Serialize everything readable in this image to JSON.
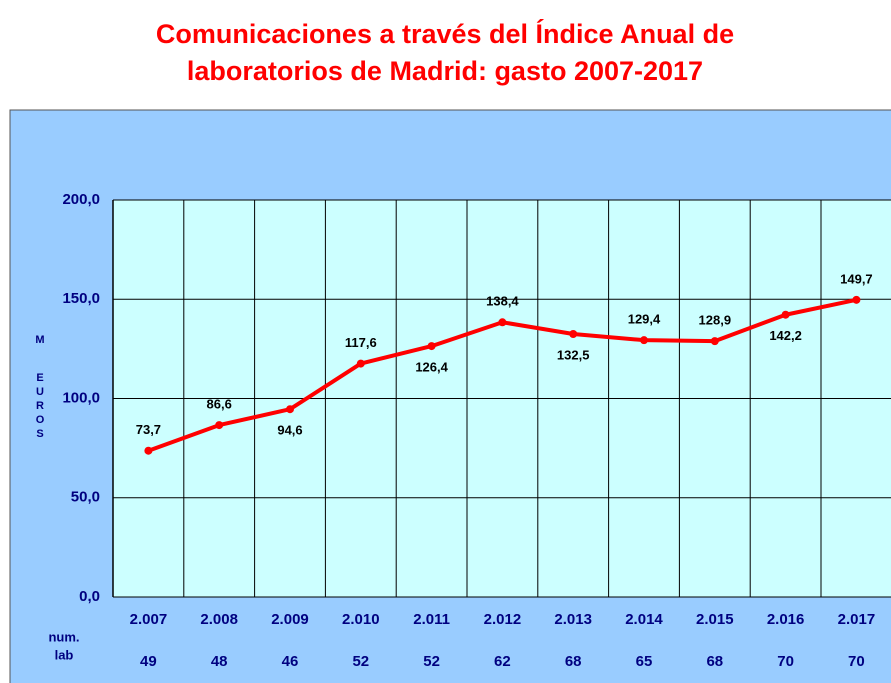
{
  "chart_data": {
    "type": "line",
    "title": [
      "Comunicaciones a través del Índice Anual de",
      "laboratorios de Madrid: gasto 2007-2017"
    ],
    "ylabel": "M EUROS",
    "categories": [
      "2.007",
      "2.008",
      "2.009",
      "2.010",
      "2.011",
      "2.012",
      "2.013",
      "2.014",
      "2.015",
      "2.016",
      "2.017"
    ],
    "series": [
      {
        "color": "#ff0000",
        "values": [
          73.7,
          86.6,
          94.6,
          117.6,
          126.4,
          138.4,
          132.5,
          129.4,
          128.9,
          142.2,
          149.7
        ],
        "value_labels": [
          "73,7",
          "86,6",
          "94,6",
          "117,6",
          "126,4",
          "138,4",
          "132,5",
          "129,4",
          "128,9",
          "142,2",
          "149,7"
        ]
      }
    ],
    "ylim": [
      0,
      200
    ],
    "yticks": [
      {
        "value": 0,
        "label": "0,0"
      },
      {
        "value": 50,
        "label": "50,0"
      },
      {
        "value": 100,
        "label": "100,0"
      },
      {
        "value": 150,
        "label": "150,0"
      },
      {
        "value": 200,
        "label": "200,0"
      }
    ],
    "grid": true,
    "row_label": [
      "num.",
      "lab"
    ],
    "lab_counts": [
      49,
      48,
      46,
      52,
      52,
      62,
      68,
      65,
      68,
      70,
      70
    ]
  }
}
